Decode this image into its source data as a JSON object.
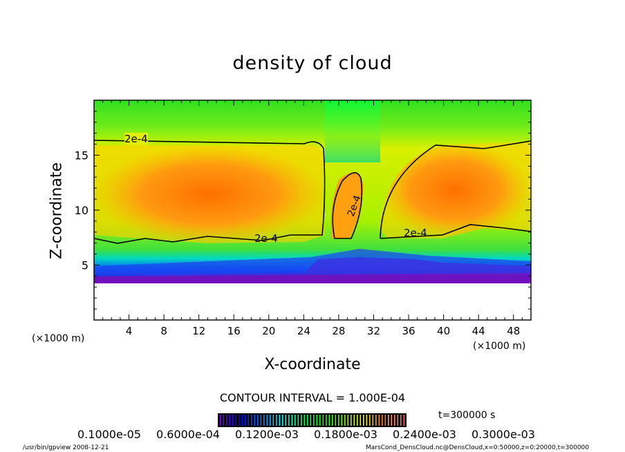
{
  "chart_data": {
    "type": "heatmap",
    "title": "density of cloud",
    "xlabel": "X-coordinate",
    "ylabel": "Z-coordinate",
    "x_unit": "(×1000 m)",
    "z_unit": "(×1000 m)",
    "xlim": [
      0,
      50
    ],
    "ylim": [
      0,
      20
    ],
    "xticks": [
      4,
      8,
      12,
      16,
      20,
      24,
      28,
      32,
      36,
      40,
      44,
      48
    ],
    "yticks": [
      5,
      10,
      15
    ],
    "contour_interval": "CONTOUR INTERVAL = 1.000E-04",
    "contour_labels": [
      "2e-4",
      "2e-4",
      "2e-4",
      "2e-4"
    ],
    "colorbar_labels": [
      "0.1000e-05",
      "0.6000e-04",
      "0.1200e-03",
      "0.1800e-03",
      "0.2400e-03",
      "0.3000e-03"
    ],
    "colorbar_range": [
      1e-06,
      0.0003
    ],
    "time_label": "t=300000  s",
    "colors": {
      "low": "#7a00c0",
      "mid": "#00e000",
      "high": "#ff4000"
    }
  },
  "footer": {
    "left": "/usr/bin/gpview   2008-12-21",
    "right": "MarsCond_DensCloud.nc@DensCloud,x=0:50000,z=0:20000,t=300000"
  }
}
